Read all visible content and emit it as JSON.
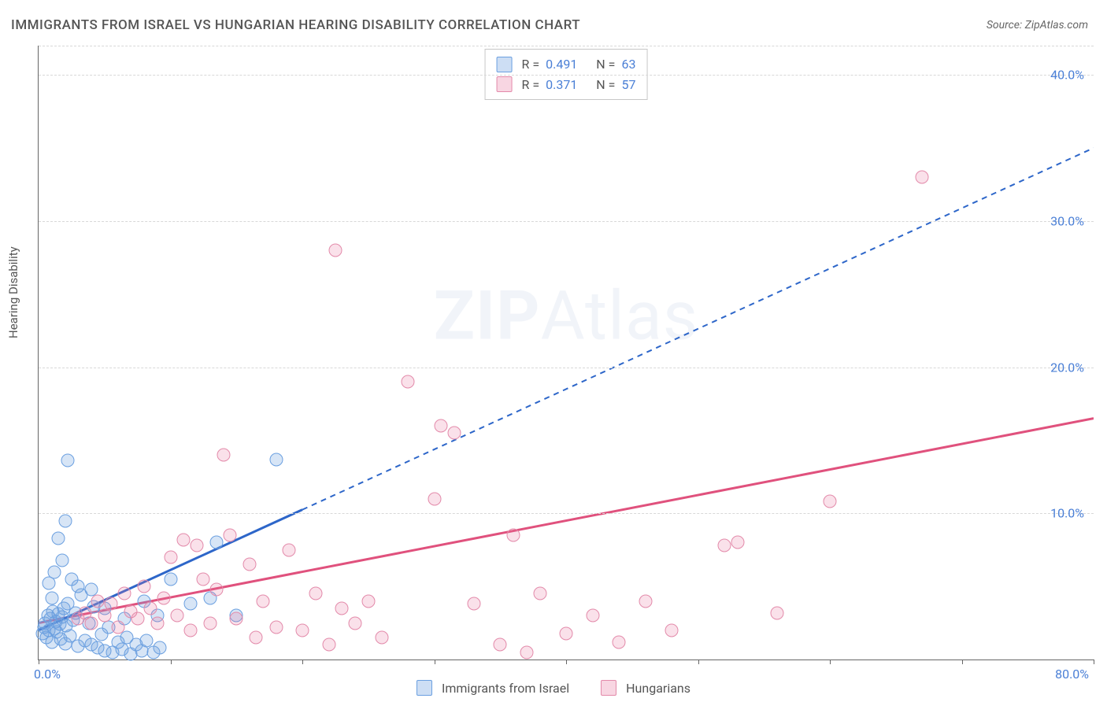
{
  "title": "IMMIGRANTS FROM ISRAEL VS HUNGARIAN HEARING DISABILITY CORRELATION CHART",
  "source": "Source: ZipAtlas.com",
  "ylabel": "Hearing Disability",
  "watermark_zip": "ZIP",
  "watermark_atlas": "Atlas",
  "chart": {
    "type": "scatter",
    "xlim": [
      0,
      80
    ],
    "ylim": [
      0,
      42
    ],
    "x_tick_positions": [
      0,
      10,
      20,
      30,
      40,
      50,
      60,
      70,
      80
    ],
    "x_tick_labels": {
      "0": "0.0%",
      "80": "80.0%"
    },
    "y_grid_positions": [
      10,
      20,
      30,
      40
    ],
    "y_tick_labels": {
      "10": "10.0%",
      "20": "20.0%",
      "30": "30.0%",
      "40": "40.0%"
    },
    "background_color": "#ffffff",
    "grid_color": "#d8d8d8",
    "axis_color": "#666666",
    "tick_label_color": "#4a7fd6",
    "series": [
      {
        "name": "Immigrants from Israel",
        "color_fill": "rgba(112,160,224,0.28)",
        "color_stroke": "#6a9fe0",
        "trend_color": "#2d66c9",
        "trend_style": "solid-then-dashed",
        "trend_solid_end_x": 20,
        "trend": {
          "x1": 0,
          "y1": 2.0,
          "x2": 80,
          "y2": 35.0
        },
        "R": 0.491,
        "N": 63,
        "points": [
          [
            0.3,
            1.8
          ],
          [
            0.4,
            2.2
          ],
          [
            0.5,
            2.5
          ],
          [
            0.6,
            1.5
          ],
          [
            0.7,
            3.0
          ],
          [
            0.8,
            2.0
          ],
          [
            0.9,
            2.8
          ],
          [
            1.0,
            1.2
          ],
          [
            1.1,
            3.3
          ],
          [
            1.2,
            2.1
          ],
          [
            1.3,
            2.6
          ],
          [
            1.4,
            1.9
          ],
          [
            1.5,
            3.1
          ],
          [
            1.6,
            2.4
          ],
          [
            1.7,
            1.4
          ],
          [
            1.8,
            2.9
          ],
          [
            1.9,
            3.5
          ],
          [
            2.0,
            1.1
          ],
          [
            2.1,
            2.3
          ],
          [
            2.2,
            3.8
          ],
          [
            2.4,
            1.6
          ],
          [
            2.6,
            2.7
          ],
          [
            2.8,
            3.2
          ],
          [
            3.0,
            0.9
          ],
          [
            3.2,
            4.4
          ],
          [
            3.5,
            1.3
          ],
          [
            3.8,
            2.5
          ],
          [
            4.0,
            1.0
          ],
          [
            4.2,
            3.6
          ],
          [
            4.5,
            0.8
          ],
          [
            4.8,
            1.7
          ],
          [
            5.0,
            0.6
          ],
          [
            5.3,
            2.2
          ],
          [
            5.6,
            0.5
          ],
          [
            6.0,
            1.2
          ],
          [
            6.3,
            0.7
          ],
          [
            6.7,
            1.5
          ],
          [
            7.0,
            0.4
          ],
          [
            7.4,
            1.0
          ],
          [
            7.8,
            0.6
          ],
          [
            8.2,
            1.3
          ],
          [
            8.7,
            0.5
          ],
          [
            9.2,
            0.8
          ],
          [
            1.5,
            8.3
          ],
          [
            2.0,
            9.5
          ],
          [
            2.2,
            13.6
          ],
          [
            4.0,
            4.8
          ],
          [
            5.0,
            3.5
          ],
          [
            6.5,
            2.8
          ],
          [
            8.0,
            4.0
          ],
          [
            9.0,
            3.0
          ],
          [
            10.0,
            5.5
          ],
          [
            11.5,
            3.8
          ],
          [
            13.0,
            4.2
          ],
          [
            13.5,
            8.0
          ],
          [
            15.0,
            3.0
          ],
          [
            18.0,
            13.7
          ],
          [
            3.0,
            5.0
          ],
          [
            1.0,
            4.2
          ],
          [
            0.8,
            5.2
          ],
          [
            1.2,
            6.0
          ],
          [
            1.8,
            6.8
          ],
          [
            2.5,
            5.5
          ]
        ]
      },
      {
        "name": "Hungarians",
        "color_fill": "rgba(232,120,160,0.22)",
        "color_stroke": "#e38aaa",
        "trend_color": "#e0517d",
        "trend_style": "solid",
        "trend": {
          "x1": 0,
          "y1": 2.5,
          "x2": 80,
          "y2": 16.5
        },
        "R": 0.371,
        "N": 57,
        "points": [
          [
            3.0,
            2.8
          ],
          [
            3.5,
            3.2
          ],
          [
            4.0,
            2.5
          ],
          [
            4.5,
            4.0
          ],
          [
            5.0,
            3.0
          ],
          [
            5.5,
            3.8
          ],
          [
            6.0,
            2.2
          ],
          [
            6.5,
            4.5
          ],
          [
            7.0,
            3.3
          ],
          [
            7.5,
            2.8
          ],
          [
            8.0,
            5.0
          ],
          [
            8.5,
            3.5
          ],
          [
            9.0,
            2.5
          ],
          [
            9.5,
            4.2
          ],
          [
            10.0,
            7.0
          ],
          [
            10.5,
            3.0
          ],
          [
            11.0,
            8.2
          ],
          [
            11.5,
            2.0
          ],
          [
            12.0,
            7.8
          ],
          [
            12.5,
            5.5
          ],
          [
            13.0,
            2.5
          ],
          [
            13.5,
            4.8
          ],
          [
            14.0,
            14.0
          ],
          [
            14.5,
            8.5
          ],
          [
            15.0,
            2.8
          ],
          [
            16.0,
            6.5
          ],
          [
            16.5,
            1.5
          ],
          [
            17.0,
            4.0
          ],
          [
            18.0,
            2.2
          ],
          [
            19.0,
            7.5
          ],
          [
            20.0,
            2.0
          ],
          [
            21.0,
            4.5
          ],
          [
            22.0,
            1.0
          ],
          [
            23.0,
            3.5
          ],
          [
            24.0,
            2.5
          ],
          [
            25.0,
            4.0
          ],
          [
            26.0,
            1.5
          ],
          [
            22.5,
            28.0
          ],
          [
            28.0,
            19.0
          ],
          [
            30.0,
            11.0
          ],
          [
            30.5,
            16.0
          ],
          [
            31.5,
            15.5
          ],
          [
            33.0,
            3.8
          ],
          [
            35.0,
            1.0
          ],
          [
            36.0,
            8.5
          ],
          [
            37.0,
            0.5
          ],
          [
            38.0,
            4.5
          ],
          [
            40.0,
            1.8
          ],
          [
            42.0,
            3.0
          ],
          [
            44.0,
            1.2
          ],
          [
            46.0,
            4.0
          ],
          [
            52.0,
            7.8
          ],
          [
            53.0,
            8.0
          ],
          [
            60.0,
            10.8
          ],
          [
            67.0,
            33.0
          ],
          [
            56.0,
            3.2
          ],
          [
            48.0,
            2.0
          ]
        ]
      }
    ]
  },
  "legend": {
    "series1_label": "Immigrants from Israel",
    "series2_label": "Hungarians"
  },
  "stats_box": {
    "row1": {
      "R_label": "R =",
      "R_val": "0.491",
      "N_label": "N =",
      "N_val": "63"
    },
    "row2": {
      "R_label": "R =",
      "R_val": "0.371",
      "N_label": "N =",
      "N_val": "57"
    }
  }
}
